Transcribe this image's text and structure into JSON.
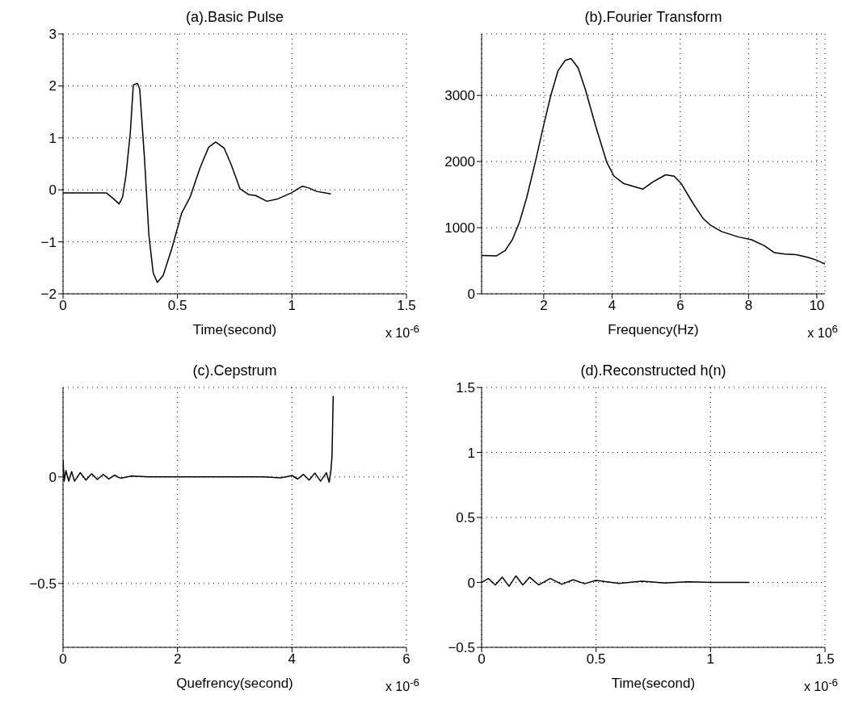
{
  "chart_data": [
    {
      "type": "line",
      "title": "(a).Basic Pulse",
      "xlabel": "Time(second)",
      "annotations": [
        "x 10$^{-6}$"
      ],
      "color": "#000000",
      "grid": true,
      "line_style": "solid",
      "xlim": [
        0,
        1.5
      ],
      "xticks": [
        0,
        0.5,
        1,
        1.5
      ],
      "ylim": [
        -2,
        3
      ],
      "yticks": [
        -2,
        -1,
        0,
        1,
        2,
        3
      ],
      "x": [
        0,
        0.19,
        0.22,
        0.245,
        0.26,
        0.275,
        0.294,
        0.307,
        0.325,
        0.335,
        0.356,
        0.375,
        0.394,
        0.412,
        0.437,
        0.475,
        0.518,
        0.555,
        0.599,
        0.636,
        0.667,
        0.704,
        0.735,
        0.773,
        0.81,
        0.841,
        0.891,
        0.94,
        0.996,
        1.046,
        1.071,
        1.108,
        1.17
      ],
      "values": [
        -0.06,
        -0.06,
        -0.17,
        -0.27,
        -0.14,
        0.28,
        1.11,
        2.02,
        2.05,
        1.94,
        0.59,
        -0.87,
        -1.6,
        -1.78,
        -1.65,
        -1.13,
        -0.45,
        -0.14,
        0.43,
        0.82,
        0.92,
        0.8,
        0.48,
        0.02,
        -0.09,
        -0.11,
        -0.22,
        -0.17,
        -0.06,
        0.07,
        0.04,
        -0.03,
        -0.08
      ]
    },
    {
      "type": "line",
      "title": "(b).Fourier Transform",
      "xlabel": "Frequency(Hz)",
      "annotations": [
        "x 10$^{6}$"
      ],
      "color": "#000000",
      "grid": true,
      "line_style": "solid",
      "xlim": [
        0.18,
        10.24
      ],
      "xticks": [
        2,
        4,
        6,
        8,
        10
      ],
      "ylim": [
        0,
        3930
      ],
      "yticks": [
        0,
        1000,
        2000,
        3000
      ],
      "x": [
        0.18,
        0.61,
        0.87,
        1.08,
        1.29,
        1.5,
        1.75,
        2.0,
        2.21,
        2.42,
        2.63,
        2.8,
        3.01,
        3.22,
        3.51,
        3.85,
        4.06,
        4.35,
        4.9,
        5.19,
        5.57,
        5.82,
        6.03,
        6.37,
        6.66,
        6.87,
        7.21,
        7.71,
        8.09,
        8.47,
        8.76,
        9.06,
        9.39,
        9.73,
        9.98,
        10.24
      ],
      "values": [
        580,
        573,
        654,
        818,
        1084,
        1452,
        1984,
        2556,
        3006,
        3374,
        3530,
        3558,
        3415,
        3088,
        2556,
        1984,
        1779,
        1665,
        1583,
        1689,
        1800,
        1779,
        1665,
        1370,
        1145,
        1043,
        941,
        859,
        818,
        724,
        622,
        601,
        593,
        552,
        511,
        450
      ]
    },
    {
      "type": "line",
      "title": "(c).Cepstrum",
      "xlabel": "Quefrency(second)",
      "annotations": [
        "x 10$^{-6}$"
      ],
      "color": "#000000",
      "grid": true,
      "line_style": "solid",
      "xlim": [
        0,
        6
      ],
      "xticks": [
        0,
        2,
        4,
        6
      ],
      "ylim": [
        -0.8,
        0.42
      ],
      "yticks": [
        -0.5,
        0
      ],
      "x": [
        0,
        0.02,
        0.05,
        0.1,
        0.15,
        0.2,
        0.3,
        0.4,
        0.5,
        0.6,
        0.7,
        0.8,
        0.9,
        1.0,
        1.2,
        1.5,
        2.0,
        2.5,
        3.0,
        3.5,
        3.8,
        4.0,
        4.1,
        4.2,
        4.3,
        4.4,
        4.5,
        4.6,
        4.65,
        4.68,
        4.7,
        4.72
      ],
      "values": [
        0.08,
        -0.02,
        0.03,
        -0.02,
        0.025,
        -0.02,
        0.02,
        -0.015,
        0.015,
        -0.012,
        0.012,
        -0.01,
        0.008,
        -0.006,
        0.004,
        0,
        0,
        0,
        0,
        0,
        -0.004,
        0.006,
        -0.01,
        0.012,
        -0.015,
        0.018,
        -0.02,
        0.02,
        -0.025,
        0.03,
        0.1,
        0.38
      ]
    },
    {
      "type": "line",
      "title": "(d).Reconstructed h(n)",
      "xlabel": "Time(second)",
      "annotations": [
        "x 10$^{-6}$"
      ],
      "color": "#000000",
      "grid": true,
      "line_style": "solid",
      "xlim": [
        0,
        1.5
      ],
      "xticks": [
        0,
        0.5,
        1,
        1.5
      ],
      "ylim": [
        -0.5,
        1.5
      ],
      "yticks": [
        -0.5,
        0,
        0.5,
        1,
        1.5
      ],
      "x": [
        0,
        0.03,
        0.06,
        0.09,
        0.12,
        0.15,
        0.18,
        0.21,
        0.25,
        0.3,
        0.35,
        0.4,
        0.45,
        0.5,
        0.6,
        0.7,
        0.8,
        0.9,
        1.0,
        1.17
      ],
      "values": [
        0,
        0.03,
        -0.02,
        0.04,
        -0.03,
        0.05,
        -0.02,
        0.04,
        -0.02,
        0.03,
        -0.015,
        0.02,
        -0.01,
        0.015,
        -0.008,
        0.01,
        -0.005,
        0.005,
        0,
        0
      ]
    }
  ]
}
